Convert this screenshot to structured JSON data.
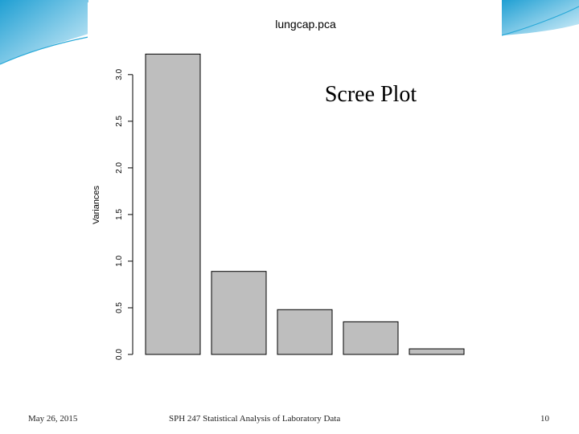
{
  "chart_data": {
    "type": "bar",
    "title": "lungcap.pca",
    "annotation": "Scree Plot",
    "ylabel": "Variances",
    "xlabel": "",
    "ylim": [
      0,
      3.3
    ],
    "yticks": [
      "0.0",
      "0.5",
      "1.0",
      "1.5",
      "2.0",
      "2.5",
      "3.0"
    ],
    "ytick_values": [
      0,
      0.5,
      1.0,
      1.5,
      2.0,
      2.5,
      3.0
    ],
    "values": [
      3.22,
      0.89,
      0.48,
      0.35,
      0.06
    ],
    "bar_color": "#bebebe",
    "grid": false
  },
  "footer": {
    "date": "May 26, 2015",
    "course": "SPH 247 Statistical Analysis of Laboratory Data",
    "page": "10"
  },
  "colors": {
    "accent": "#29a9d8",
    "accent_light": "#bfe4f3"
  }
}
